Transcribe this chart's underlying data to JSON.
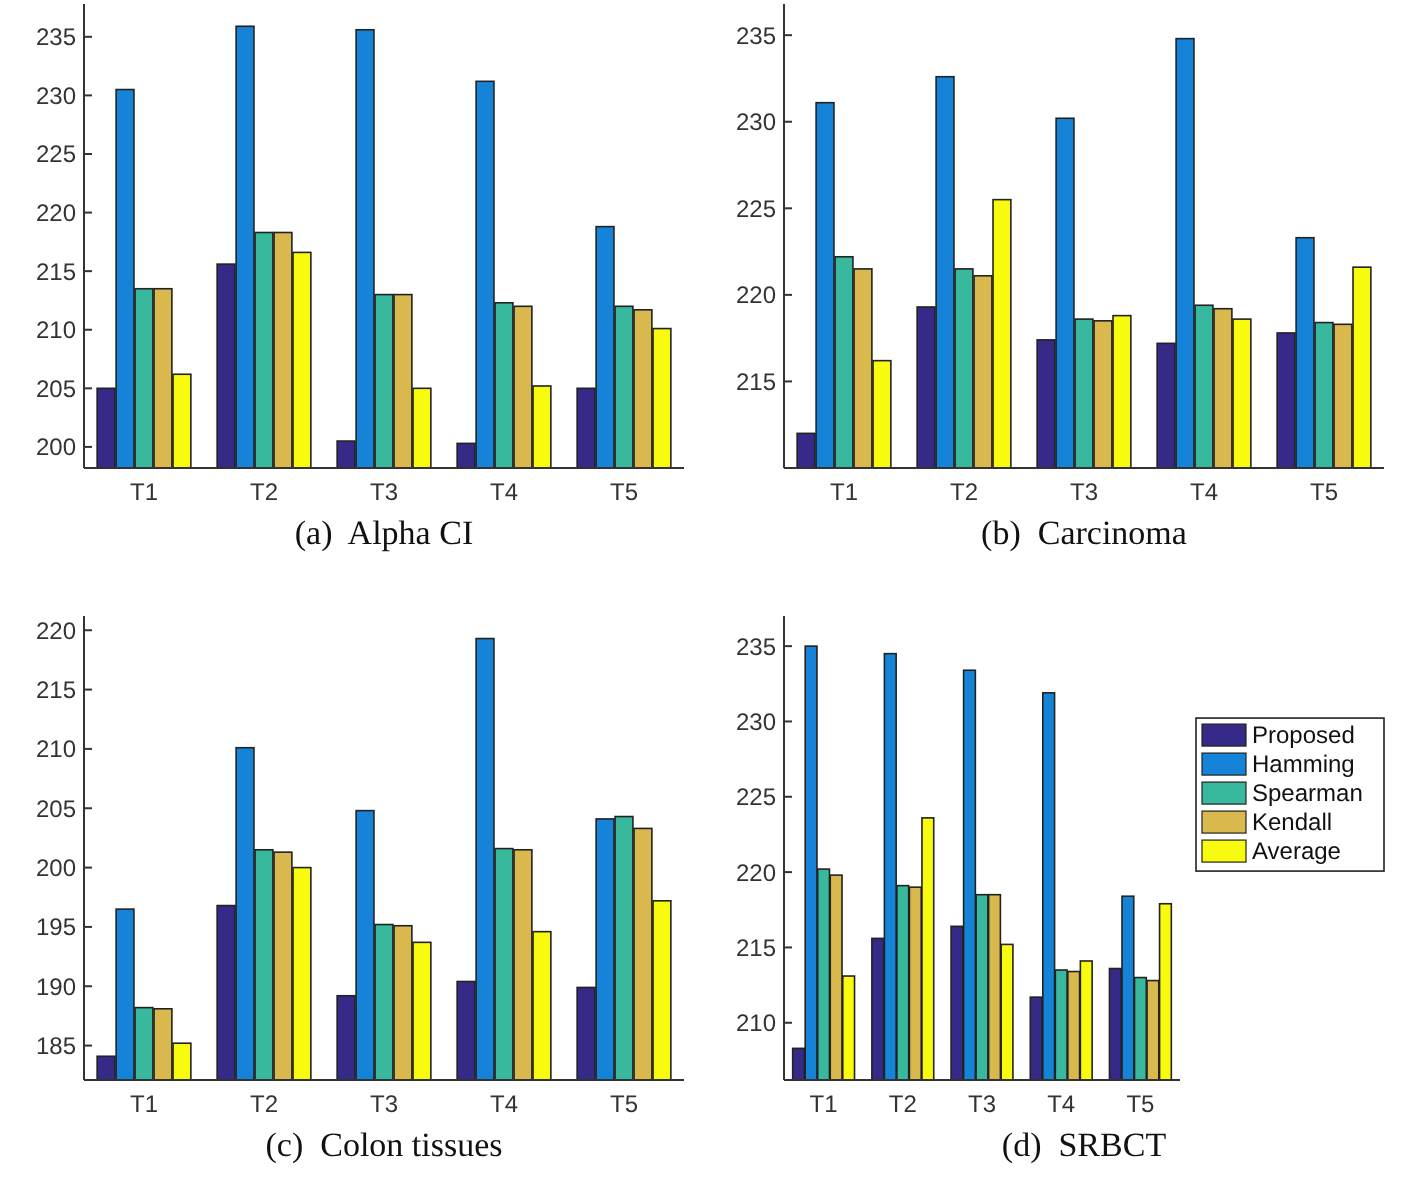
{
  "chart_data": [
    {
      "type": "bar",
      "title": "(a)  Alpha CI",
      "categories": [
        "T1",
        "T2",
        "T3",
        "T4",
        "T5"
      ],
      "ylim": [
        198.2,
        237.8
      ],
      "yticks": [
        200,
        205,
        210,
        215,
        220,
        225,
        230,
        235
      ],
      "grid": false,
      "legend": false,
      "series": [
        {
          "color": "#352a87",
          "values": [
            205.0,
            215.6,
            200.5,
            200.3,
            205.0
          ]
        },
        {
          "color": "#1584d8",
          "values": [
            230.5,
            235.9,
            235.6,
            231.2,
            218.8
          ]
        },
        {
          "color": "#38b99e",
          "values": [
            213.5,
            218.3,
            213.0,
            212.3,
            212.0
          ]
        },
        {
          "color": "#d9b84e",
          "values": [
            213.5,
            218.3,
            213.0,
            212.0,
            211.7
          ]
        },
        {
          "color": "#f9fb0e",
          "values": [
            206.2,
            216.6,
            205.0,
            205.2,
            210.1
          ]
        }
      ]
    },
    {
      "type": "bar",
      "title": "(b)  Carcinoma",
      "categories": [
        "T1",
        "T2",
        "T3",
        "T4",
        "T5"
      ],
      "ylim": [
        210,
        236.8
      ],
      "yticks": [
        215,
        220,
        225,
        230,
        235
      ],
      "grid": false,
      "legend": false,
      "series": [
        {
          "color": "#352a87",
          "values": [
            212.0,
            219.3,
            217.4,
            217.2,
            217.8
          ]
        },
        {
          "color": "#1584d8",
          "values": [
            231.1,
            232.6,
            230.2,
            234.8,
            223.3
          ]
        },
        {
          "color": "#38b99e",
          "values": [
            222.2,
            221.5,
            218.6,
            219.4,
            218.4
          ]
        },
        {
          "color": "#d9b84e",
          "values": [
            221.5,
            221.1,
            218.5,
            219.2,
            218.3
          ]
        },
        {
          "color": "#f9fb0e",
          "values": [
            216.2,
            225.5,
            218.8,
            218.6,
            221.6
          ]
        }
      ]
    },
    {
      "type": "bar",
      "title": "(c)  Colon tissues",
      "categories": [
        "T1",
        "T2",
        "T3",
        "T4",
        "T5"
      ],
      "ylim": [
        182.1,
        221.2
      ],
      "yticks": [
        185,
        190,
        195,
        200,
        205,
        210,
        215,
        220
      ],
      "grid": false,
      "legend": false,
      "series": [
        {
          "color": "#352a87",
          "values": [
            184.1,
            196.8,
            189.2,
            190.4,
            189.9
          ]
        },
        {
          "color": "#1584d8",
          "values": [
            196.5,
            210.1,
            204.8,
            219.3,
            204.1
          ]
        },
        {
          "color": "#38b99e",
          "values": [
            188.2,
            201.5,
            195.2,
            201.6,
            204.3
          ]
        },
        {
          "color": "#d9b84e",
          "values": [
            188.1,
            201.3,
            195.1,
            201.5,
            203.3
          ]
        },
        {
          "color": "#f9fb0e",
          "values": [
            185.2,
            200.0,
            193.7,
            194.6,
            197.2
          ]
        }
      ]
    },
    {
      "type": "bar",
      "title": "(d)  SRBCT",
      "categories": [
        "T1",
        "T2",
        "T3",
        "T4",
        "T5"
      ],
      "ylim": [
        206.2,
        237.0
      ],
      "yticks": [
        210,
        215,
        220,
        225,
        230,
        235
      ],
      "grid": false,
      "legend": "right",
      "series": [
        {
          "name": "Proposed",
          "color": "#352a87",
          "values": [
            208.3,
            215.6,
            216.4,
            211.7,
            213.6
          ]
        },
        {
          "name": "Hamming",
          "color": "#1584d8",
          "values": [
            235.0,
            234.5,
            233.4,
            231.9,
            218.4
          ]
        },
        {
          "name": "Spearman",
          "color": "#38b99e",
          "values": [
            220.2,
            219.1,
            218.5,
            213.5,
            213.0
          ]
        },
        {
          "name": "Kendall",
          "color": "#d9b84e",
          "values": [
            219.8,
            219.0,
            218.5,
            213.4,
            212.8
          ]
        },
        {
          "name": "Average",
          "color": "#f9fb0e",
          "values": [
            213.1,
            223.6,
            215.2,
            214.1,
            217.9
          ]
        }
      ]
    }
  ]
}
